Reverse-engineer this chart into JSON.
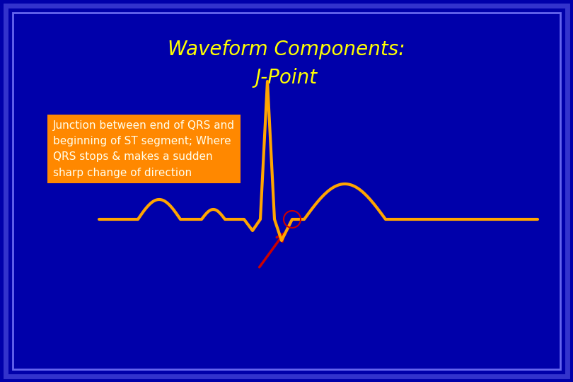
{
  "title_line1": "Waveform Components:",
  "title_line2": "J-Point",
  "title_color": "#FFFF00",
  "title_fontsize": 20,
  "bg_color": "#0000AA",
  "border_color_outer": "#3333CC",
  "border_color_inner": "#6666EE",
  "waveform_color": "#FFA500",
  "waveform_linewidth": 3.0,
  "text_box_color": "#FF8800",
  "text_box_text": "Junction between end of QRS and\nbeginning of ST segment; Where\nQRS stops & makes a sudden\nsharp change of direction",
  "text_color": "#FFFFEE",
  "text_fontsize": 11,
  "arrow_color": "#CC0000",
  "circle_color": "#CC0000"
}
